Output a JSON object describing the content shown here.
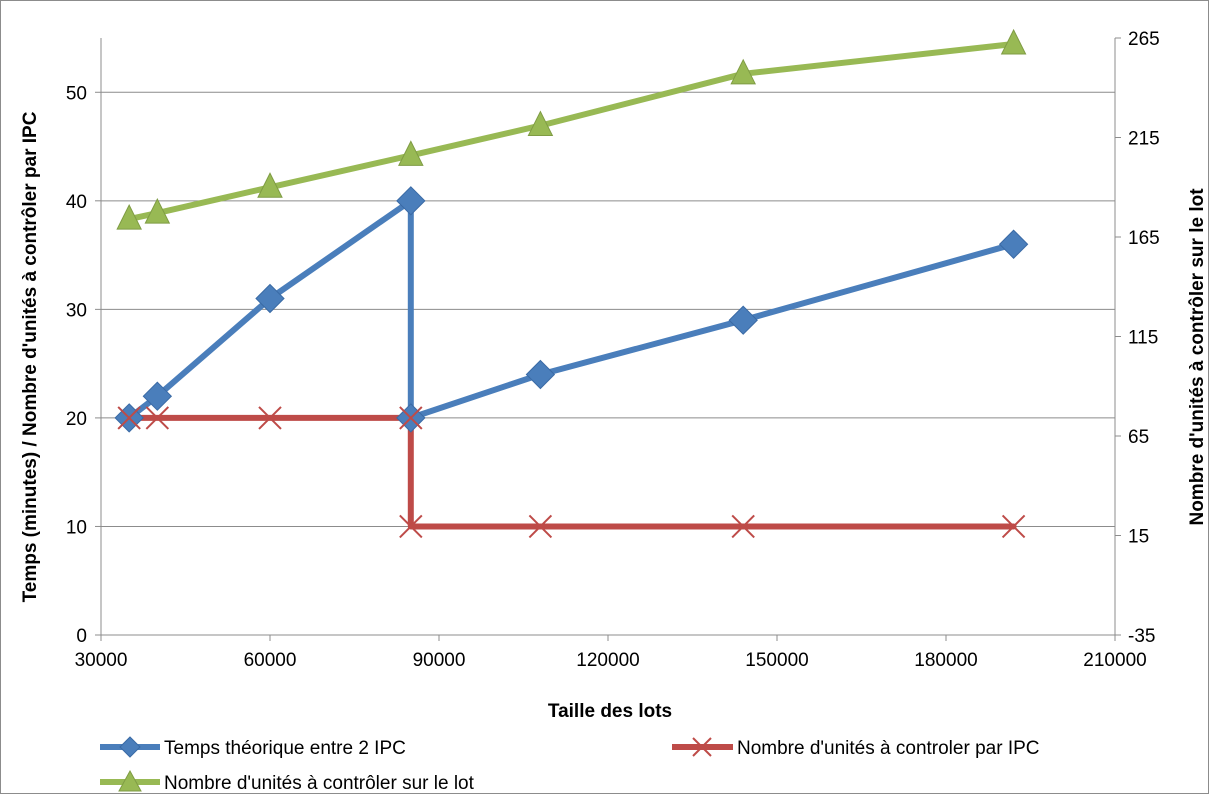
{
  "chart_data": {
    "type": "line",
    "title": "",
    "xlabel": "Taille des lots",
    "ylabel": "Temps (minutes) / Nombre d'unités à contrôler par IPC",
    "y2label": "Nombre d'unités à contrôler sur le lot",
    "xlim": [
      30000,
      210000
    ],
    "ylim": [
      0,
      55
    ],
    "y2lim": [
      -35,
      265
    ],
    "x_ticks": [
      "30000",
      "60000",
      "90000",
      "120000",
      "150000",
      "180000",
      "210000"
    ],
    "y_ticks": [
      "0",
      "10",
      "20",
      "30",
      "40",
      "50"
    ],
    "y2_ticks": [
      "-35",
      "15",
      "65",
      "115",
      "165",
      "215",
      "265"
    ],
    "grid": true,
    "legend_position": "bottom",
    "series": [
      {
        "name": "Temps théorique entre 2 IPC",
        "axis": "left",
        "color": "#4A7EBB",
        "marker": "diamond",
        "x": [
          35000,
          40000,
          60000,
          85000,
          85000,
          108000,
          144000,
          192000
        ],
        "y": [
          20,
          22,
          31,
          40,
          20,
          24,
          29,
          36
        ]
      },
      {
        "name": "Nombre d'unités à controler par IPC",
        "axis": "left",
        "color": "#BE4B48",
        "marker": "x",
        "x": [
          35000,
          40000,
          60000,
          85000,
          85000,
          108000,
          144000,
          192000
        ],
        "y": [
          20,
          20,
          20,
          20,
          10,
          10,
          10,
          10
        ]
      },
      {
        "name": "Nombre d'unités à contrôler sur le lot",
        "axis": "right",
        "color": "#98B954",
        "marker": "triangle",
        "x": [
          35000,
          40000,
          60000,
          85000,
          108000,
          144000,
          192000
        ],
        "y": [
          174,
          177,
          190,
          206,
          221,
          247,
          262
        ]
      }
    ]
  }
}
